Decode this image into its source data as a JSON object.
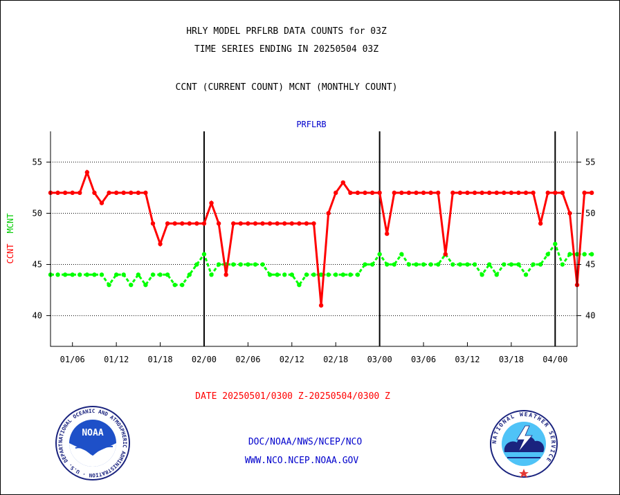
{
  "header": {
    "title_line1": "HRLY MODEL PRFLRB DATA COUNTS for 03Z",
    "title_line2": "TIME SERIES ENDING IN 20250504 03Z",
    "subtitle": "CCNT (CURRENT COUNT) MCNT (MONTHLY COUNT)"
  },
  "footer": {
    "date_range": "DATE 20250501/0300 Z-20250504/0300 Z",
    "org_line": "DOC/NOAA/NWS/NCEP/NCO",
    "url_line": "WWW.NCO.NCEP.NOAA.GOV"
  },
  "logos": {
    "left": {
      "name": "NOAA",
      "ring_text": "NATIONAL OCEANIC AND ATMOSPHERIC ADMINISTRATION · U.S. DEPARTMENT OF COMMERCE"
    },
    "right": {
      "name": "NATIONAL WEATHER SERVICE",
      "ring_text": "NATIONAL WEATHER SERVICE"
    }
  },
  "chart_data": {
    "type": "line",
    "title": "PRFLRB",
    "ylabel_left_ccnt": "CCNT",
    "ylabel_left_mcnt": "MCNT",
    "ylim": [
      37,
      58
    ],
    "yticks": [
      40,
      45,
      50,
      55
    ],
    "x_start_index": 0,
    "x_end_index": 72,
    "x_ticks": [
      {
        "index": 3,
        "label": "01/06"
      },
      {
        "index": 9,
        "label": "01/12"
      },
      {
        "index": 15,
        "label": "01/18"
      },
      {
        "index": 21,
        "label": "02/00"
      },
      {
        "index": 27,
        "label": "02/06"
      },
      {
        "index": 33,
        "label": "02/12"
      },
      {
        "index": 39,
        "label": "02/18"
      },
      {
        "index": 45,
        "label": "03/00"
      },
      {
        "index": 51,
        "label": "03/06"
      },
      {
        "index": 57,
        "label": "03/12"
      },
      {
        "index": 63,
        "label": "03/18"
      },
      {
        "index": 69,
        "label": "04/00"
      }
    ],
    "day_boundaries": [
      21,
      45,
      69
    ],
    "grid": "horizontal dotted",
    "colors": {
      "ccnt": "#ff0000",
      "mcnt": "#00ff00",
      "title": "#0000cc"
    },
    "series": [
      {
        "name": "CCNT",
        "color": "#ff0000",
        "values": [
          52,
          52,
          52,
          52,
          52,
          54,
          52,
          51,
          52,
          52,
          52,
          52,
          52,
          52,
          49,
          47,
          49,
          49,
          49,
          49,
          49,
          49,
          51,
          49,
          44,
          49,
          49,
          49,
          49,
          49,
          49,
          49,
          49,
          49,
          49,
          49,
          49,
          41,
          50,
          52,
          53,
          52,
          52,
          52,
          52,
          52,
          48,
          52,
          52,
          52,
          52,
          52,
          52,
          52,
          46,
          52,
          52,
          52,
          52,
          52,
          52,
          52,
          52,
          52,
          52,
          52,
          52,
          49,
          52,
          52,
          52,
          50,
          43,
          52,
          52
        ]
      },
      {
        "name": "MCNT",
        "color": "#00ff00",
        "values": [
          44,
          44,
          44,
          44,
          44,
          44,
          44,
          44,
          43,
          44,
          44,
          43,
          44,
          43,
          44,
          44,
          44,
          43,
          43,
          44,
          45,
          46,
          44,
          45,
          45,
          45,
          45,
          45,
          45,
          45,
          44,
          44,
          44,
          44,
          43,
          44,
          44,
          44,
          44,
          44,
          44,
          44,
          44,
          45,
          45,
          46,
          45,
          45,
          46,
          45,
          45,
          45,
          45,
          45,
          46,
          45,
          45,
          45,
          45,
          44,
          45,
          44,
          45,
          45,
          45,
          44,
          45,
          45,
          46,
          47,
          45,
          46,
          46,
          46,
          46
        ]
      }
    ]
  }
}
